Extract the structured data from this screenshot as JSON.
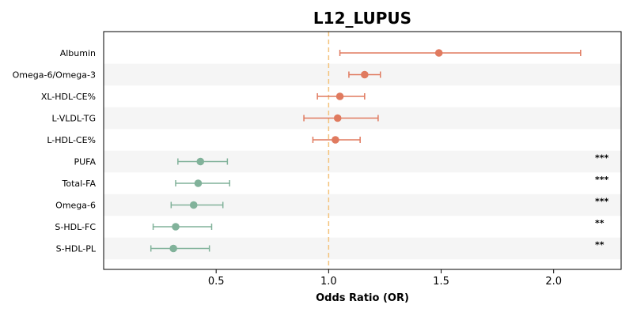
{
  "chart_data": {
    "type": "forest",
    "title": "L12_LUPUS",
    "xlabel": "Odds Ratio (OR)",
    "ylabel": "",
    "xlim": [
      0.0,
      2.3
    ],
    "xticks": [
      "0.5",
      "1.0",
      "1.5",
      "2.0"
    ],
    "reference_line": 1.0,
    "grid": false,
    "colors": {
      "positive": "#e07a5f",
      "negative": "#81b29a",
      "reference": "#f4c27a",
      "band": "#f5f5f5"
    },
    "rows": [
      {
        "label": "Albumin",
        "or": 1.49,
        "lo": 1.05,
        "hi": 2.12,
        "sig": ""
      },
      {
        "label": "Omega-6/Omega-3",
        "or": 1.16,
        "lo": 1.09,
        "hi": 1.23,
        "sig": ""
      },
      {
        "label": "XL-HDL-CE%",
        "or": 1.05,
        "lo": 0.95,
        "hi": 1.16,
        "sig": ""
      },
      {
        "label": "L-VLDL-TG",
        "or": 1.04,
        "lo": 0.89,
        "hi": 1.22,
        "sig": ""
      },
      {
        "label": "L-HDL-CE%",
        "or": 1.03,
        "lo": 0.93,
        "hi": 1.14,
        "sig": ""
      },
      {
        "label": "PUFA",
        "or": 0.43,
        "lo": 0.33,
        "hi": 0.55,
        "sig": "***"
      },
      {
        "label": "Total-FA",
        "or": 0.42,
        "lo": 0.32,
        "hi": 0.56,
        "sig": "***"
      },
      {
        "label": "Omega-6",
        "or": 0.4,
        "lo": 0.3,
        "hi": 0.53,
        "sig": "***"
      },
      {
        "label": "S-HDL-FC",
        "or": 0.32,
        "lo": 0.22,
        "hi": 0.48,
        "sig": "**"
      },
      {
        "label": "S-HDL-PL",
        "or": 0.31,
        "lo": 0.21,
        "hi": 0.47,
        "sig": "**"
      }
    ]
  }
}
